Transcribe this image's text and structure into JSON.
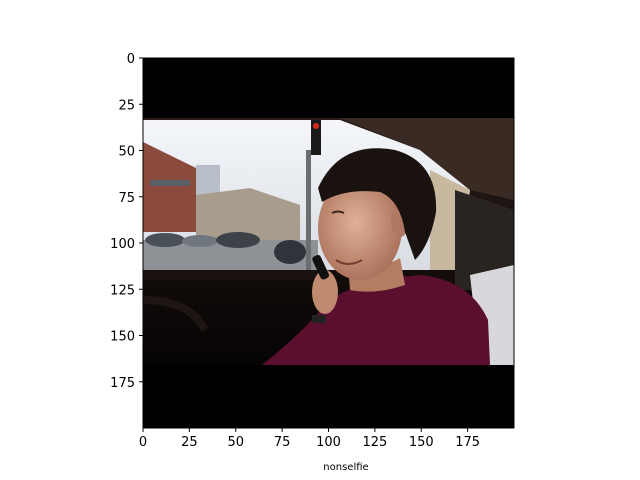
{
  "chart_data": {
    "type": "image",
    "xlabel": "nonselfie",
    "ylabel": "",
    "title": "",
    "xlim": [
      0,
      200
    ],
    "ylim": [
      200,
      0
    ],
    "x_ticks": [
      0,
      25,
      50,
      75,
      100,
      125,
      150,
      175
    ],
    "y_ticks": [
      0,
      25,
      50,
      75,
      100,
      125,
      150,
      175
    ],
    "grid": false,
    "image_description": "photo of a young man in a car smiling over his shoulder while talking on a phone",
    "colors": {
      "frame": "#000000",
      "sky": "#e8ecf2",
      "shirt": "#5a0f2e",
      "skin": "#c89478",
      "hair": "#1a120e"
    }
  }
}
